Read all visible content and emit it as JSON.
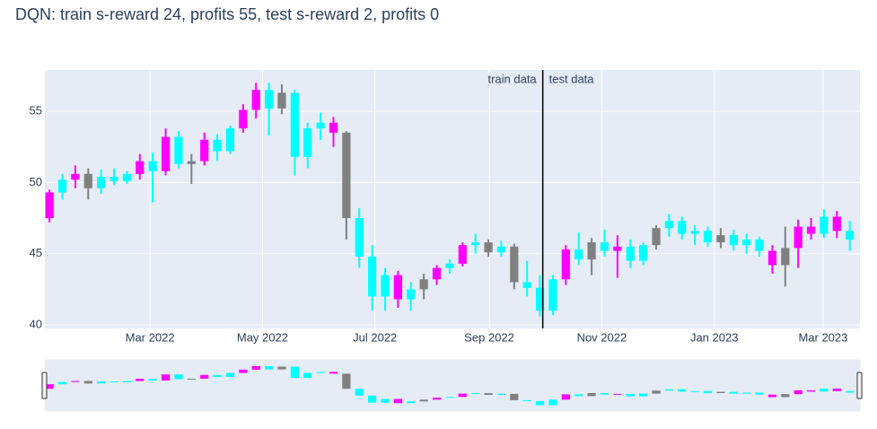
{
  "chart_data": {
    "type": "candlestick",
    "title": "DQN: train s-reward 24, profits 55, test s-reward 2, profits 0",
    "annotations": {
      "left": "train data",
      "right": "test data",
      "x": "2022-09-30"
    },
    "xlim": [
      "2022-01-03",
      "2023-03-21"
    ],
    "xticks": [
      {
        "value": "2022-03-01",
        "label": "Mar 2022"
      },
      {
        "value": "2022-05-01",
        "label": "May 2022"
      },
      {
        "value": "2022-07-01",
        "label": "Jul 2022"
      },
      {
        "value": "2022-09-01",
        "label": "Sep 2022"
      },
      {
        "value": "2022-11-01",
        "label": "Nov 2022"
      },
      {
        "value": "2023-01-01",
        "label": "Jan 2023"
      },
      {
        "value": "2023-03-01",
        "label": "Mar 2023"
      }
    ],
    "ylim": [
      39.75,
      57.9
    ],
    "yticks": [
      40,
      45,
      50,
      55
    ],
    "grid": true,
    "range_slider": true,
    "x": [
      "2022-01-03",
      "2022-01-10",
      "2022-01-17",
      "2022-01-24",
      "2022-01-31",
      "2022-02-07",
      "2022-02-14",
      "2022-02-21",
      "2022-02-28",
      "2022-03-07",
      "2022-03-14",
      "2022-03-21",
      "2022-03-28",
      "2022-04-04",
      "2022-04-11",
      "2022-04-18",
      "2022-04-25",
      "2022-05-02",
      "2022-05-09",
      "2022-05-16",
      "2022-05-23",
      "2022-05-30",
      "2022-06-06",
      "2022-06-13",
      "2022-06-20",
      "2022-06-27",
      "2022-07-04",
      "2022-07-11",
      "2022-07-18",
      "2022-07-25",
      "2022-08-01",
      "2022-08-08",
      "2022-08-15",
      "2022-08-22",
      "2022-08-29",
      "2022-09-05",
      "2022-09-12",
      "2022-09-19",
      "2022-09-26",
      "2022-10-03",
      "2022-10-10",
      "2022-10-17",
      "2022-10-24",
      "2022-10-31",
      "2022-11-07",
      "2022-11-14",
      "2022-11-21",
      "2022-11-28",
      "2022-12-05",
      "2022-12-12",
      "2022-12-19",
      "2022-12-26",
      "2023-01-02",
      "2023-01-09",
      "2023-01-16",
      "2023-01-23",
      "2023-01-30",
      "2023-02-06",
      "2023-02-13",
      "2023-02-20",
      "2023-02-27",
      "2023-03-06",
      "2023-03-13"
    ],
    "open": [
      47.5,
      49.3,
      50.2,
      50.6,
      49.6,
      50.4,
      50.1,
      50.6,
      51.5,
      50.8,
      53.2,
      51.3,
      51.5,
      53.0,
      52.2,
      53.8,
      55.1,
      56.5,
      55.2,
      56.3,
      51.8,
      53.8,
      54.2,
      53.5,
      47.5,
      44.8,
      42.0,
      43.5,
      41.8,
      42.5,
      43.2,
      44.0,
      44.3,
      45.6,
      45.8,
      45.1,
      45.5,
      43.0,
      42.6,
      41.0,
      43.2,
      45.3,
      44.6,
      45.8,
      45.2,
      45.5,
      44.5,
      45.6,
      46.8,
      47.3,
      46.4,
      46.6,
      45.8,
      46.3,
      45.6,
      46.0,
      45.2,
      44.2,
      45.4,
      46.9,
      46.4,
      47.6,
      46.6
    ],
    "high": [
      49.5,
      50.6,
      51.2,
      51.0,
      50.9,
      51.0,
      50.8,
      52.0,
      52.1,
      53.8,
      53.6,
      52.0,
      53.5,
      53.4,
      54.0,
      55.5,
      57.0,
      57.0,
      56.9,
      56.5,
      54.2,
      54.9,
      54.6,
      53.6,
      48.2,
      45.6,
      44.0,
      43.8,
      43.0,
      43.6,
      44.2,
      44.6,
      45.8,
      46.4,
      46.0,
      45.9,
      45.7,
      44.5,
      43.5,
      43.5,
      45.6,
      46.5,
      46.1,
      46.7,
      46.3,
      46.0,
      45.8,
      47.0,
      47.8,
      47.6,
      47.0,
      46.9,
      46.8,
      46.7,
      46.4,
      46.2,
      45.6,
      46.9,
      47.4,
      47.5,
      48.1,
      48.0,
      47.3
    ],
    "low": [
      47.2,
      48.8,
      49.6,
      48.8,
      49.2,
      49.8,
      49.9,
      50.2,
      48.6,
      50.5,
      51.0,
      49.9,
      51.2,
      51.5,
      52.0,
      53.5,
      54.5,
      53.3,
      54.8,
      50.5,
      51.0,
      53.0,
      52.5,
      46.0,
      44.0,
      41.0,
      41.0,
      41.2,
      41.0,
      41.8,
      42.8,
      43.6,
      44.1,
      45.0,
      44.8,
      44.8,
      42.5,
      42.0,
      40.6,
      40.7,
      42.8,
      44.2,
      43.5,
      44.8,
      43.3,
      44.0,
      44.2,
      45.3,
      46.2,
      46.0,
      45.6,
      45.5,
      45.4,
      45.2,
      45.0,
      44.8,
      43.6,
      42.7,
      44.0,
      46.0,
      46.1,
      46.1,
      45.2
    ],
    "close": [
      49.3,
      50.2,
      50.6,
      49.6,
      50.4,
      50.1,
      50.6,
      51.5,
      50.8,
      53.2,
      51.3,
      51.5,
      53.0,
      52.2,
      53.8,
      55.1,
      56.5,
      55.2,
      56.3,
      51.8,
      53.8,
      54.2,
      53.5,
      47.5,
      44.8,
      42.0,
      43.5,
      41.8,
      42.5,
      43.2,
      44.0,
      44.3,
      45.6,
      45.8,
      45.1,
      45.5,
      43.0,
      42.6,
      41.0,
      43.2,
      45.3,
      44.6,
      45.8,
      45.2,
      45.5,
      44.5,
      45.6,
      46.8,
      47.3,
      46.4,
      46.6,
      45.8,
      46.3,
      45.6,
      46.0,
      45.2,
      44.2,
      45.4,
      46.9,
      46.4,
      47.6,
      46.6,
      46.0
    ],
    "colors": [
      "magenta",
      "cyan",
      "magenta",
      "gray",
      "cyan",
      "cyan",
      "cyan",
      "magenta",
      "cyan",
      "magenta",
      "cyan",
      "gray",
      "magenta",
      "cyan",
      "cyan",
      "magenta",
      "magenta",
      "cyan",
      "gray",
      "cyan",
      "cyan",
      "cyan",
      "magenta",
      "gray",
      "cyan",
      "cyan",
      "cyan",
      "magenta",
      "cyan",
      "gray",
      "magenta",
      "cyan",
      "magenta",
      "cyan",
      "gray",
      "cyan",
      "gray",
      "cyan",
      "cyan",
      "cyan",
      "magenta",
      "cyan",
      "gray",
      "cyan",
      "magenta",
      "cyan",
      "cyan",
      "gray",
      "cyan",
      "cyan",
      "cyan",
      "cyan",
      "gray",
      "cyan",
      "cyan",
      "cyan",
      "magenta",
      "gray",
      "magenta",
      "magenta",
      "cyan",
      "magenta",
      "cyan"
    ]
  }
}
